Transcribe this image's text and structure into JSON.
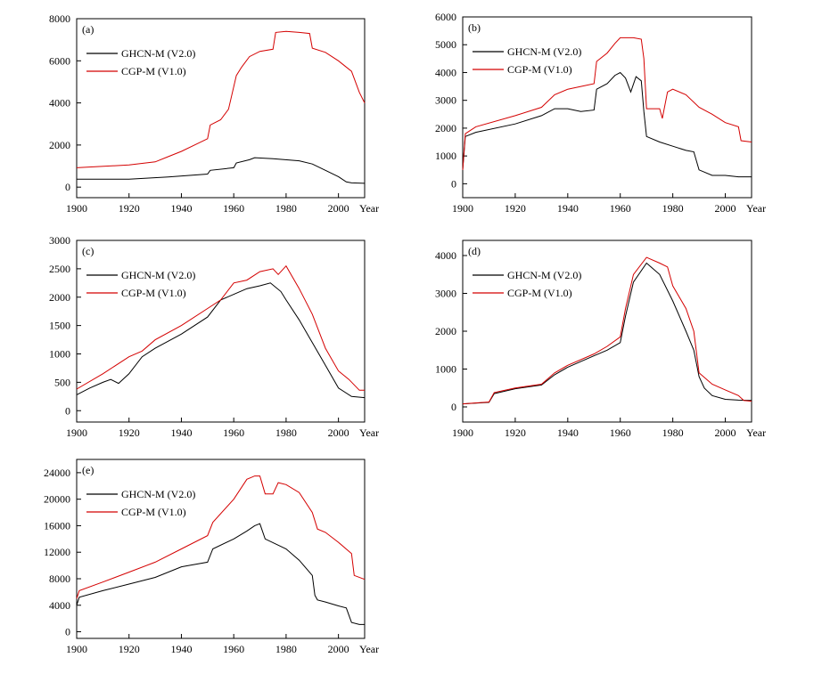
{
  "colors": {
    "ghcn": "#000000",
    "cgp": "#d40000"
  },
  "chart_data": [
    {
      "type": "line",
      "panel_label": "(a)",
      "xlim": [
        1900,
        2010
      ],
      "ylim": [
        -500,
        8000
      ],
      "xticks": [
        "1900",
        "1920",
        "1940",
        "1960",
        "1980",
        "2000"
      ],
      "xunit_label": "Year",
      "yticks": [
        "0",
        "2000",
        "4000",
        "6000",
        "8000"
      ],
      "legend": [
        "GHCN-M  (V2.0)",
        "CGP-M  (V1.0)"
      ],
      "series": [
        {
          "name": "GHCN-M (V2.0)",
          "x": [
            1900,
            1920,
            1935,
            1950,
            1951,
            1960,
            1961,
            1966,
            1968,
            1975,
            1985,
            1990,
            1995,
            2000,
            2003,
            2005,
            2010
          ],
          "values": [
            380,
            380,
            480,
            620,
            800,
            920,
            1150,
            1300,
            1400,
            1350,
            1250,
            1100,
            800,
            500,
            250,
            200,
            180
          ]
        },
        {
          "name": "CGP-M (V1.0)",
          "x": [
            1900,
            1920,
            1930,
            1935,
            1940,
            1945,
            1950,
            1951,
            1955,
            1958,
            1961,
            1963,
            1966,
            1970,
            1975,
            1976,
            1980,
            1985,
            1989,
            1990,
            1995,
            2000,
            2005,
            2008,
            2010
          ],
          "values": [
            920,
            1050,
            1200,
            1450,
            1700,
            2000,
            2300,
            2950,
            3200,
            3700,
            5300,
            5700,
            6200,
            6450,
            6550,
            7350,
            7400,
            7350,
            7300,
            6600,
            6400,
            6000,
            5500,
            4500,
            4000
          ]
        }
      ]
    },
    {
      "type": "line",
      "panel_label": "(b)",
      "xlim": [
        1900,
        2010
      ],
      "ylim": [
        -500,
        6000
      ],
      "xticks": [
        "1900",
        "1920",
        "1940",
        "1960",
        "1980",
        "2000"
      ],
      "xunit_label": "Year",
      "yticks": [
        "0",
        "1000",
        "2000",
        "3000",
        "4000",
        "5000",
        "6000"
      ],
      "legend": [
        "GHCN-M  (V2.0)",
        "CGP-M  (V1.0)"
      ],
      "series": [
        {
          "name": "GHCN-M (V2.0)",
          "x": [
            1900,
            1901,
            1905,
            1920,
            1930,
            1935,
            1940,
            1945,
            1950,
            1951,
            1955,
            1958,
            1960,
            1962,
            1964,
            1966,
            1968,
            1969,
            1970,
            1975,
            1980,
            1985,
            1988,
            1990,
            1995,
            2000,
            2005,
            2010
          ],
          "values": [
            500,
            1700,
            1850,
            2150,
            2450,
            2700,
            2700,
            2600,
            2650,
            3400,
            3600,
            3900,
            4000,
            3800,
            3300,
            3850,
            3700,
            2600,
            1700,
            1500,
            1350,
            1200,
            1150,
            500,
            300,
            300,
            250,
            250
          ]
        },
        {
          "name": "CGP-M (V1.0)",
          "x": [
            1900,
            1901,
            1905,
            1920,
            1930,
            1935,
            1940,
            1945,
            1950,
            1951,
            1955,
            1958,
            1960,
            1965,
            1968,
            1969,
            1970,
            1975,
            1976,
            1978,
            1980,
            1985,
            1990,
            1995,
            2000,
            2005,
            2006,
            2010
          ],
          "values": [
            500,
            1800,
            2050,
            2450,
            2750,
            3200,
            3400,
            3500,
            3600,
            4400,
            4700,
            5050,
            5250,
            5250,
            5200,
            4500,
            2700,
            2700,
            2350,
            3300,
            3400,
            3200,
            2750,
            2500,
            2200,
            2050,
            1550,
            1500
          ]
        }
      ]
    },
    {
      "type": "line",
      "panel_label": "(c)",
      "xlim": [
        1900,
        2010
      ],
      "ylim": [
        -200,
        3000
      ],
      "xticks": [
        "1900",
        "1920",
        "1940",
        "1960",
        "1980",
        "2000"
      ],
      "xunit_label": "Year",
      "yticks": [
        "0",
        "500",
        "1000",
        "1500",
        "2000",
        "2500",
        "3000"
      ],
      "legend": [
        "GHCN-M  (V2.0)",
        "CGP-M  (V1.0)"
      ],
      "series": [
        {
          "name": "GHCN-M (V2.0)",
          "x": [
            1900,
            1905,
            1910,
            1913,
            1916,
            1920,
            1925,
            1930,
            1940,
            1950,
            1955,
            1960,
            1965,
            1970,
            1974,
            1978,
            1980,
            1985,
            1990,
            1995,
            2000,
            2005,
            2010
          ],
          "values": [
            280,
            400,
            500,
            550,
            480,
            650,
            950,
            1100,
            1350,
            1650,
            1950,
            2050,
            2150,
            2200,
            2250,
            2100,
            1950,
            1600,
            1200,
            800,
            400,
            250,
            230
          ]
        },
        {
          "name": "CGP-M (V1.0)",
          "x": [
            1900,
            1910,
            1920,
            1925,
            1930,
            1940,
            1950,
            1955,
            1960,
            1965,
            1970,
            1975,
            1977,
            1980,
            1985,
            1990,
            1995,
            2000,
            2004,
            2008,
            2010
          ],
          "values": [
            380,
            650,
            950,
            1050,
            1250,
            1500,
            1800,
            1950,
            2250,
            2300,
            2450,
            2500,
            2400,
            2550,
            2150,
            1700,
            1100,
            700,
            550,
            360,
            360
          ]
        }
      ]
    },
    {
      "type": "line",
      "panel_label": "(d)",
      "xlim": [
        1900,
        2010
      ],
      "ylim": [
        -400,
        4400
      ],
      "xticks": [
        "1900",
        "1920",
        "1940",
        "1960",
        "1980",
        "2000"
      ],
      "xunit_label": "Year",
      "yticks": [
        "0",
        "1000",
        "2000",
        "3000",
        "4000"
      ],
      "legend": [
        "GHCN-M  (V2.0)",
        "CGP-M  (V1.0)"
      ],
      "series": [
        {
          "name": "GHCN-M (V2.0)",
          "x": [
            1900,
            1910,
            1912,
            1920,
            1930,
            1935,
            1940,
            1950,
            1955,
            1960,
            1962,
            1965,
            1970,
            1975,
            1980,
            1985,
            1988,
            1990,
            1992,
            1995,
            2000,
            2005,
            2010
          ],
          "values": [
            80,
            120,
            350,
            480,
            580,
            850,
            1050,
            1350,
            1500,
            1700,
            2400,
            3300,
            3800,
            3500,
            2800,
            2000,
            1500,
            800,
            500,
            300,
            200,
            180,
            170
          ]
        },
        {
          "name": "CGP-M (V1.0)",
          "x": [
            1900,
            1910,
            1912,
            1920,
            1930,
            1935,
            1940,
            1950,
            1955,
            1960,
            1962,
            1965,
            1970,
            1975,
            1978,
            1980,
            1985,
            1988,
            1990,
            1995,
            2000,
            2005,
            2007,
            2010
          ],
          "values": [
            80,
            130,
            380,
            500,
            600,
            900,
            1100,
            1400,
            1600,
            1850,
            2600,
            3500,
            3950,
            3800,
            3700,
            3200,
            2600,
            2000,
            900,
            600,
            450,
            300,
            170,
            150
          ]
        }
      ]
    },
    {
      "type": "line",
      "panel_label": "(e)",
      "xlim": [
        1900,
        2010
      ],
      "ylim": [
        -1000,
        26000
      ],
      "xticks": [
        "1900",
        "1920",
        "1940",
        "1960",
        "1980",
        "2000"
      ],
      "xunit_label": "Year",
      "yticks": [
        "0",
        "4000",
        "8000",
        "12000",
        "16000",
        "20000",
        "24000"
      ],
      "legend": [
        "GHCN-M  (V2.0)",
        "CGP-M  (V1.0)"
      ],
      "series": [
        {
          "name": "GHCN-M (V2.0)",
          "x": [
            1900,
            1901,
            1910,
            1920,
            1930,
            1940,
            1950,
            1952,
            1960,
            1965,
            1968,
            1970,
            1972,
            1980,
            1985,
            1990,
            1991,
            1992,
            1995,
            2000,
            2003,
            2005,
            2008,
            2010
          ],
          "values": [
            4000,
            5200,
            6200,
            7200,
            8200,
            9800,
            10500,
            12500,
            14000,
            15200,
            16000,
            16300,
            14000,
            12500,
            10800,
            8500,
            5500,
            4800,
            4500,
            3900,
            3600,
            1400,
            1100,
            1100
          ]
        },
        {
          "name": "CGP-M (V1.0)",
          "x": [
            1900,
            1901,
            1910,
            1920,
            1930,
            1940,
            1950,
            1952,
            1960,
            1965,
            1968,
            1970,
            1972,
            1975,
            1977,
            1980,
            1985,
            1990,
            1992,
            1995,
            2000,
            2005,
            2006,
            2010
          ],
          "values": [
            5000,
            6200,
            7500,
            9000,
            10500,
            12500,
            14500,
            16500,
            20000,
            23000,
            23500,
            23500,
            20800,
            20800,
            22500,
            22200,
            21000,
            18000,
            15500,
            15000,
            13500,
            11800,
            8500,
            7900
          ]
        }
      ]
    }
  ]
}
